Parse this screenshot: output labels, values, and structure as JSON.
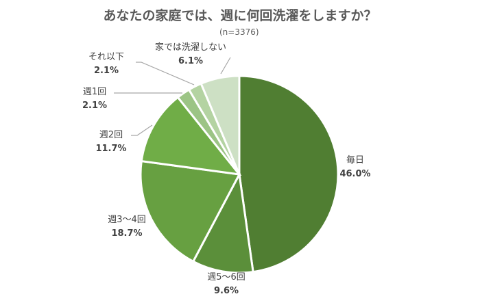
{
  "chart_data": {
    "type": "pie",
    "title": "あなたの家庭では、週に何回洗濯をしますか？",
    "note": "(n=3376)",
    "categories": [
      "毎日",
      "週5〜6回",
      "週3〜4回",
      "週2回",
      "週1回",
      "それ以下",
      "家では洗濯しない"
    ],
    "values": [
      46.0,
      9.6,
      18.7,
      11.7,
      2.1,
      2.1,
      6.1
    ],
    "labels": [
      "46.0%",
      "9.6%",
      "18.7%",
      "11.7%",
      "2.1%",
      "2.1%",
      "6.1%"
    ],
    "colors": [
      "#507e32",
      "#5b8f3a",
      "#67a041",
      "#70ad47",
      "#9cc485",
      "#b4d3a2",
      "#cde0c4"
    ],
    "start_angle_deg": 0,
    "direction": "clockwise",
    "legend": "none (data labels)"
  },
  "labels": {
    "daily": {
      "name": "毎日",
      "pct": "46.0%"
    },
    "w56": {
      "name": "週5〜6回",
      "pct": "9.6%"
    },
    "w34": {
      "name": "週3〜4回",
      "pct": "18.7%"
    },
    "w2": {
      "name": "週2回",
      "pct": "11.7%"
    },
    "w1": {
      "name": "週1回",
      "pct": "2.1%"
    },
    "less": {
      "name": "それ以下",
      "pct": "2.1%"
    },
    "none": {
      "name": "家では洗濯しない",
      "pct": "6.1%"
    }
  }
}
